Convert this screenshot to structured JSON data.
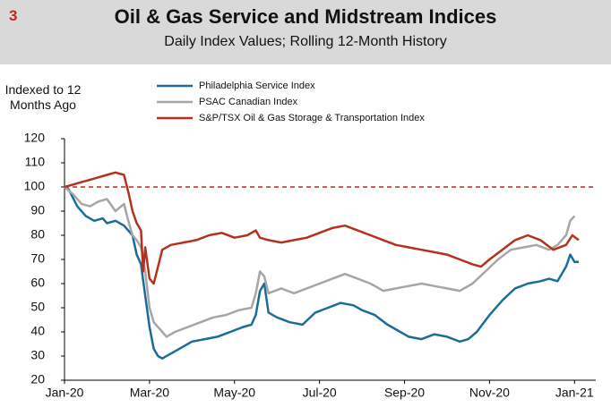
{
  "badge": "3",
  "chart_data": {
    "type": "line",
    "title": "Oil & Gas Service and Midstream Indices",
    "subtitle": "Daily Index Values; Rolling 12-Month History",
    "y_label": "Indexed to 12 Months Ago",
    "xlim": [
      0,
      12.5
    ],
    "ylim": [
      20,
      120
    ],
    "xticks": [
      {
        "value": 0,
        "label": "Jan-20"
      },
      {
        "value": 2,
        "label": "Mar-20"
      },
      {
        "value": 4,
        "label": "May-20"
      },
      {
        "value": 6,
        "label": "Jul-20"
      },
      {
        "value": 8,
        "label": "Sep-20"
      },
      {
        "value": 10,
        "label": "Nov-20"
      },
      {
        "value": 12,
        "label": "Jan-21"
      }
    ],
    "yticks": [
      20,
      30,
      40,
      50,
      60,
      70,
      80,
      90,
      100,
      110,
      120
    ],
    "reference_line": {
      "value": 100,
      "color": "#c0281e"
    },
    "series": [
      {
        "name": "Philadelphia Service Index",
        "color": "#1a6d9a",
        "x": [
          0,
          0.1,
          0.3,
          0.5,
          0.7,
          0.9,
          1.0,
          1.2,
          1.4,
          1.6,
          1.7,
          1.8,
          1.9,
          2.0,
          2.1,
          2.2,
          2.3,
          2.5,
          2.7,
          3.0,
          3.3,
          3.6,
          3.9,
          4.2,
          4.4,
          4.5,
          4.6,
          4.7,
          4.8,
          5.0,
          5.3,
          5.6,
          5.9,
          6.2,
          6.5,
          6.8,
          7.0,
          7.3,
          7.6,
          7.9,
          8.1,
          8.4,
          8.7,
          9.0,
          9.3,
          9.5,
          9.7,
          10.0,
          10.3,
          10.6,
          10.9,
          11.2,
          11.4,
          11.6,
          11.8,
          11.9,
          12.0,
          12.1
        ],
        "values": [
          100,
          99,
          92,
          88,
          86,
          87,
          85,
          86,
          84,
          80,
          72,
          68,
          55,
          42,
          33,
          30,
          29,
          31,
          33,
          36,
          37,
          38,
          40,
          42,
          43,
          47,
          57,
          60,
          48,
          46,
          44,
          43,
          48,
          50,
          52,
          51,
          49,
          47,
          43,
          40,
          38,
          37,
          39,
          38,
          36,
          37,
          40,
          47,
          53,
          58,
          60,
          61,
          62,
          61,
          67,
          72,
          69,
          69
        ]
      },
      {
        "name": "PSAC Canadian Index",
        "color": "#a6a6a6",
        "x": [
          0,
          0.2,
          0.4,
          0.6,
          0.8,
          1.0,
          1.2,
          1.4,
          1.5,
          1.6,
          1.7,
          1.8,
          1.9,
          2.0,
          2.1,
          2.3,
          2.4,
          2.6,
          2.9,
          3.2,
          3.5,
          3.8,
          4.1,
          4.4,
          4.5,
          4.6,
          4.7,
          4.8,
          5.1,
          5.4,
          5.7,
          6.0,
          6.3,
          6.6,
          6.9,
          7.2,
          7.5,
          7.8,
          8.1,
          8.4,
          8.7,
          9.0,
          9.3,
          9.6,
          9.9,
          10.2,
          10.5,
          10.8,
          11.1,
          11.4,
          11.6,
          11.8,
          11.9,
          12.0
        ],
        "values": [
          100,
          97,
          93,
          92,
          94,
          95,
          90,
          93,
          86,
          80,
          78,
          75,
          65,
          50,
          44,
          40,
          38,
          40,
          42,
          44,
          46,
          47,
          49,
          50,
          56,
          65,
          63,
          56,
          58,
          56,
          58,
          60,
          62,
          64,
          62,
          60,
          57,
          58,
          59,
          60,
          59,
          58,
          57,
          60,
          65,
          70,
          74,
          75,
          76,
          74,
          76,
          80,
          86,
          88
        ]
      },
      {
        "name": "S&P/TSX Oil & Gas Storage & Transportation Index",
        "color": "#b5311e",
        "x": [
          0,
          0.2,
          0.4,
          0.6,
          0.8,
          1.0,
          1.2,
          1.4,
          1.5,
          1.6,
          1.7,
          1.8,
          1.85,
          1.9,
          2.0,
          2.1,
          2.2,
          2.3,
          2.5,
          2.8,
          3.1,
          3.4,
          3.7,
          4.0,
          4.3,
          4.5,
          4.6,
          4.8,
          5.1,
          5.4,
          5.7,
          6.0,
          6.3,
          6.6,
          6.9,
          7.2,
          7.5,
          7.8,
          8.1,
          8.4,
          8.7,
          9.0,
          9.3,
          9.6,
          9.8,
          10.0,
          10.3,
          10.6,
          10.9,
          11.2,
          11.5,
          11.8,
          11.95,
          12.1
        ],
        "values": [
          100,
          101,
          102,
          103,
          104,
          105,
          106,
          105,
          98,
          90,
          85,
          82,
          65,
          75,
          62,
          60,
          67,
          74,
          76,
          77,
          78,
          80,
          81,
          79,
          80,
          82,
          79,
          78,
          77,
          78,
          79,
          81,
          83,
          84,
          82,
          80,
          78,
          76,
          75,
          74,
          73,
          72,
          70,
          68,
          67,
          70,
          74,
          78,
          80,
          78,
          74,
          76,
          80,
          78
        ]
      }
    ]
  }
}
